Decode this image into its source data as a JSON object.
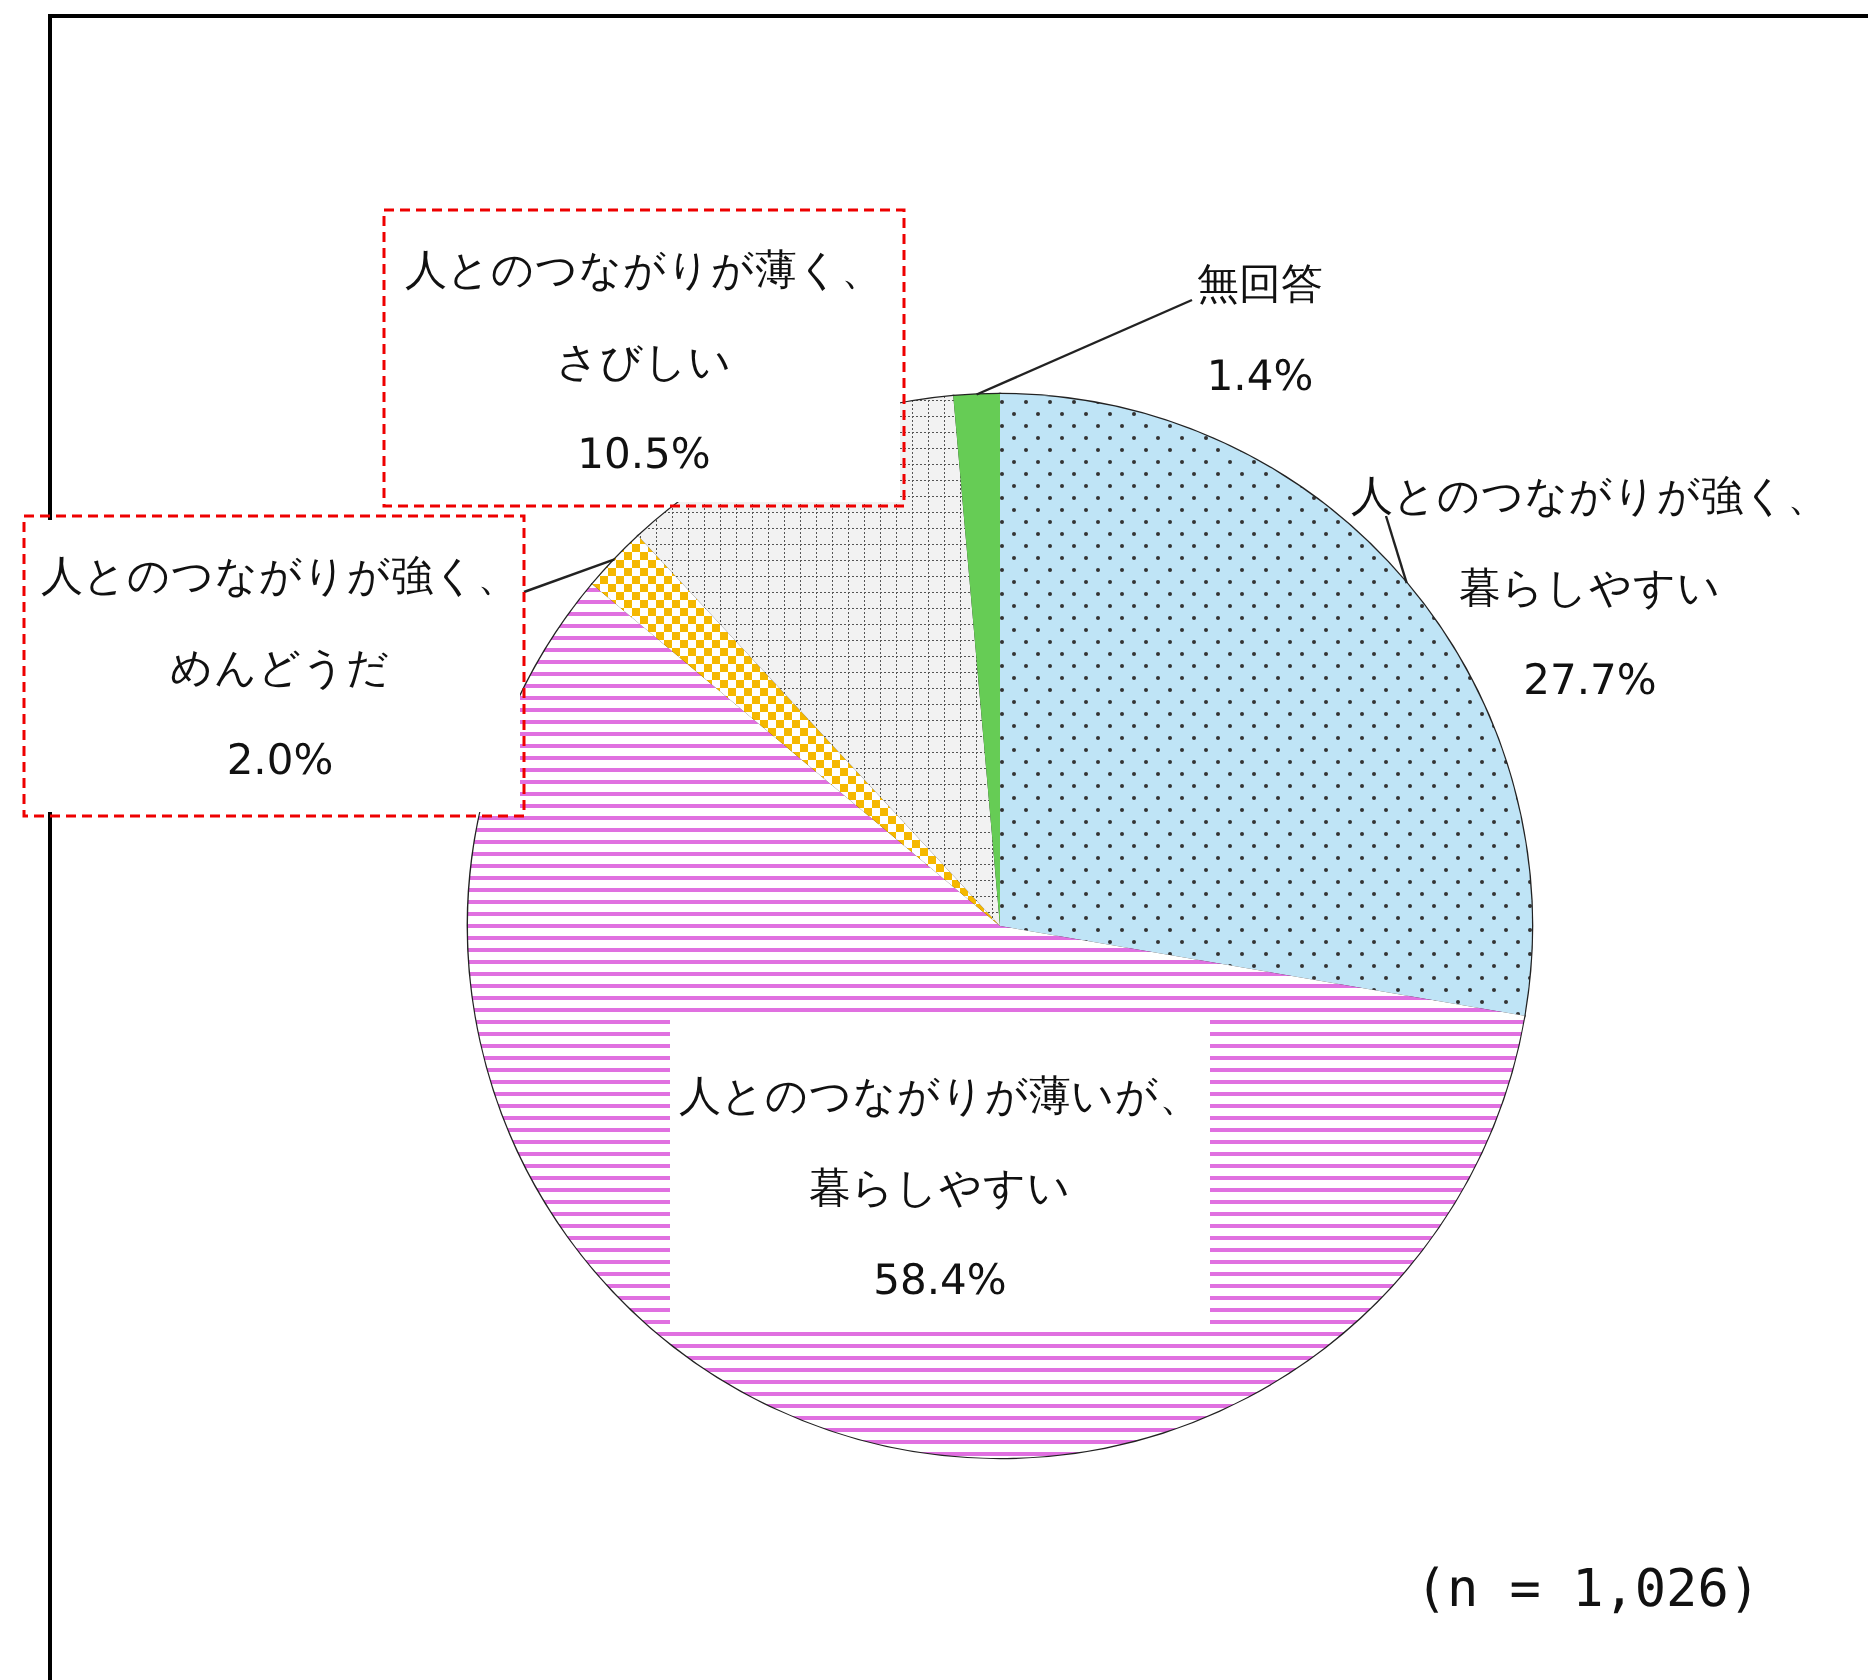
{
  "chart_data": {
    "type": "pie",
    "categories": [
      "人とのつながりが強く、暮らしやすい",
      "人とのつながりが薄いが、暮らしやすい",
      "人とのつながりが強く、めんどうだ",
      "人とのつながりが薄く、さびしい",
      "無回答"
    ],
    "values": [
      27.7,
      58.4,
      2.0,
      10.5,
      1.4
    ],
    "value_labels": [
      "27.7%",
      "58.4%",
      "2.0%",
      "10.5%",
      "1.4%"
    ],
    "colors": [
      "#bfe4f6",
      "#e070e0",
      "#f5b800",
      "#f2f2f2",
      "#66cc55"
    ],
    "annotations": [
      "(n = 1,026)"
    ]
  }
}
